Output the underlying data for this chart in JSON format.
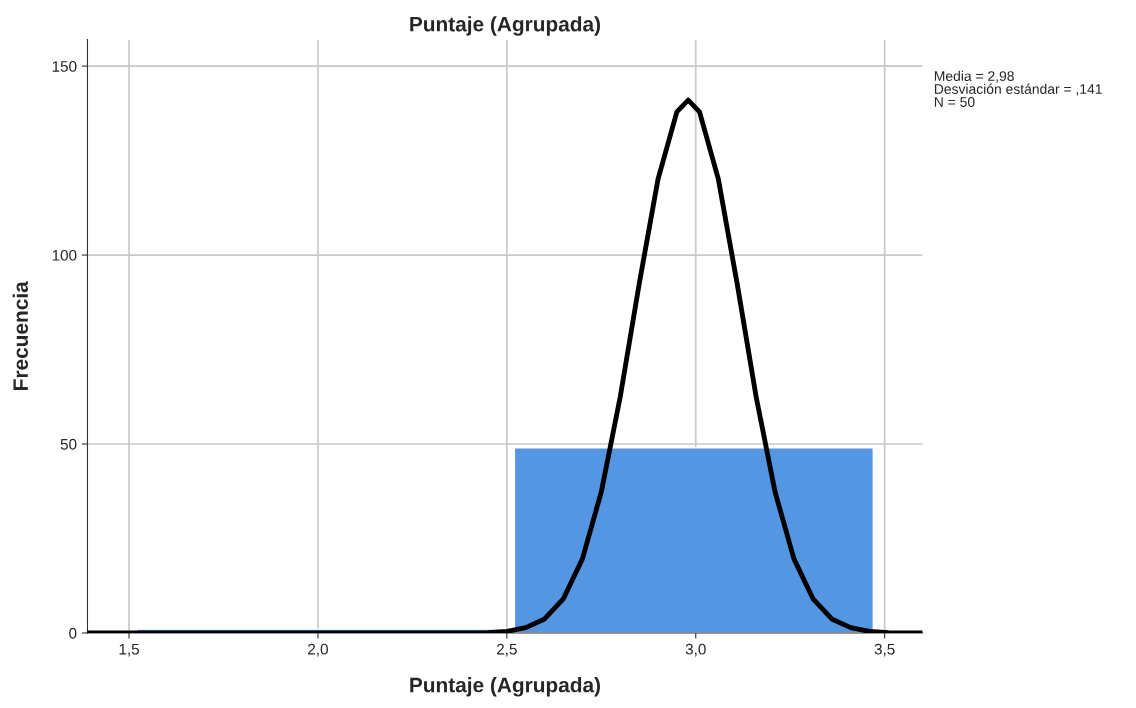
{
  "chart_data": {
    "type": "histogram",
    "title": "Puntaje (Agrupada)",
    "xlabel": "Puntaje (Agrupada)",
    "ylabel": "Frecuencia",
    "bins": [
      1.52,
      2.52,
      3.47
    ],
    "values": [
      1,
      49
    ],
    "color": "#5596e3",
    "series": [
      {
        "type": "line",
        "color": "#000000",
        "x": [
          1.39,
          2.2,
          2.4,
          2.45,
          2.5,
          2.55,
          2.6,
          2.65,
          2.7,
          2.75,
          2.8,
          2.85,
          2.9,
          2.95,
          2.98,
          3.01,
          3.06,
          3.11,
          3.16,
          3.21,
          3.26,
          3.31,
          3.36,
          3.41,
          3.46,
          3.51,
          3.6
        ],
        "values": [
          0,
          0,
          0,
          0.1,
          0.4,
          1.4,
          3.7,
          9.1,
          19.6,
          37.3,
          62.4,
          92.2,
          120,
          137.9,
          141,
          137.9,
          120,
          92.2,
          62.4,
          37.3,
          19.6,
          9.1,
          3.7,
          1.4,
          0.4,
          0.1,
          0
        ]
      }
    ],
    "xlim": [
      1.39,
      3.6
    ],
    "xticks": [
      {
        "value": 1.5,
        "label": "1,5"
      },
      {
        "value": 2.0,
        "label": "2,0"
      },
      {
        "value": 2.5,
        "label": "2,5"
      },
      {
        "value": 3.0,
        "label": "3,0"
      },
      {
        "value": 3.5,
        "label": "3,5"
      }
    ],
    "ylim": [
      0,
      157
    ],
    "yticks": [
      0,
      50,
      100,
      150
    ],
    "grid": true,
    "annotations": [
      "Media = 2,98\nDesviación estándar = ,141\nN = 50"
    ]
  }
}
